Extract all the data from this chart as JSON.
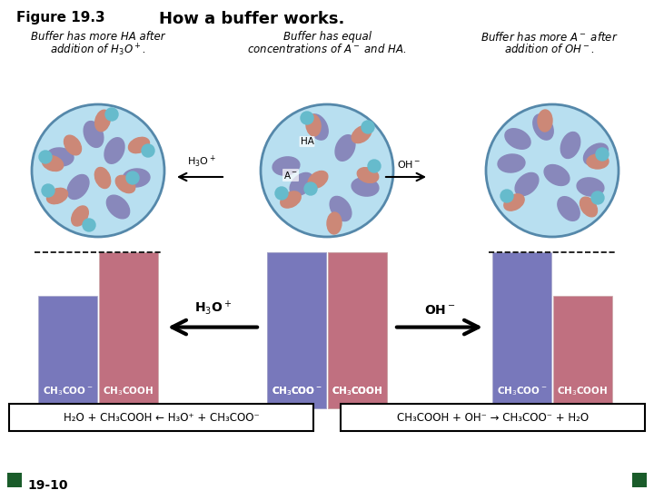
{
  "title": "How a buffer works.",
  "figure_label": "Figure 19.3",
  "circle_color": "#b8dff0",
  "circle_border": "#5588aa",
  "bar_blue": "#7878bb",
  "bar_pink": "#c07080",
  "equation_left": "H₂O + CH₃COOH ← H₃O⁺ + CH₃COO⁻",
  "equation_right": "CH₃COOH + OH⁻ → CH₃COO⁻ + H₂O",
  "page_label": "19-10",
  "bg_color": "#ffffff",
  "purple_color": "#8888bb",
  "salmon_color": "#cc8877",
  "cyan_color": "#66bbcc"
}
